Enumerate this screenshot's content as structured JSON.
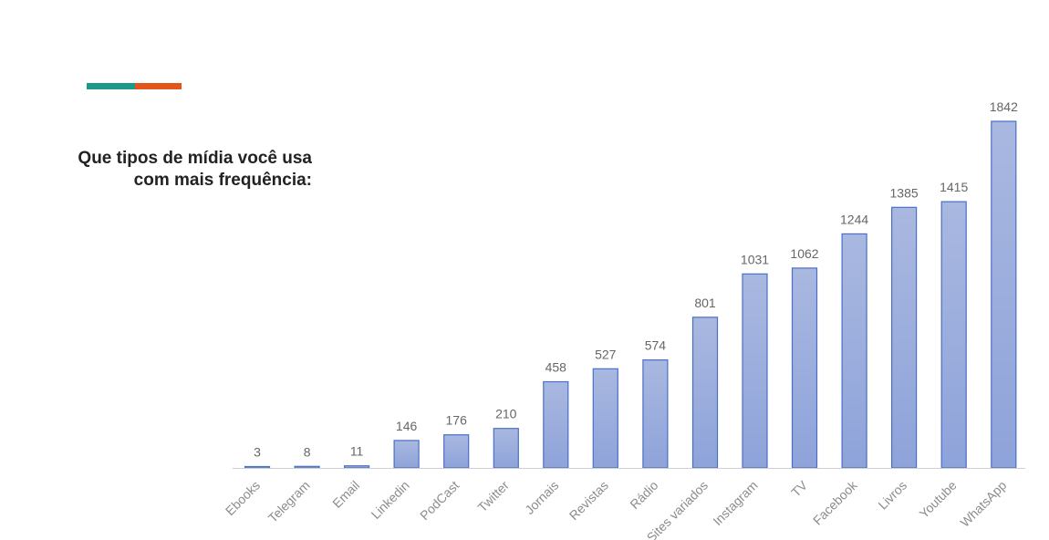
{
  "colors": {
    "accent_teal": "#1b9a8a",
    "accent_orange": "#e2561c",
    "bar_fill_top": "#a9b8e0",
    "bar_fill_bottom": "#8ea3da",
    "bar_stroke": "#4a6fc7",
    "axis": "#d0d0d0"
  },
  "heading": {
    "line1": "Que tipos de mídia você usa",
    "line2": "com mais frequência:"
  },
  "chart_data": {
    "type": "bar",
    "categories": [
      "Ebooks",
      "Telegram",
      "Email",
      "Linkedin",
      "PodCast",
      "Twitter",
      "Jornais",
      "Revistas",
      "Rádio",
      "Sites variados",
      "Instagram",
      "TV",
      "Facebook",
      "Livros",
      "Youtube",
      "WhatsApp"
    ],
    "values": [
      3,
      8,
      11,
      146,
      176,
      210,
      458,
      527,
      574,
      801,
      1031,
      1062,
      1244,
      1385,
      1415,
      1842
    ],
    "title": "",
    "xlabel": "",
    "ylabel": "",
    "ylim": [
      0,
      1842
    ],
    "grid": false,
    "legend": "none",
    "data_labels": true
  }
}
